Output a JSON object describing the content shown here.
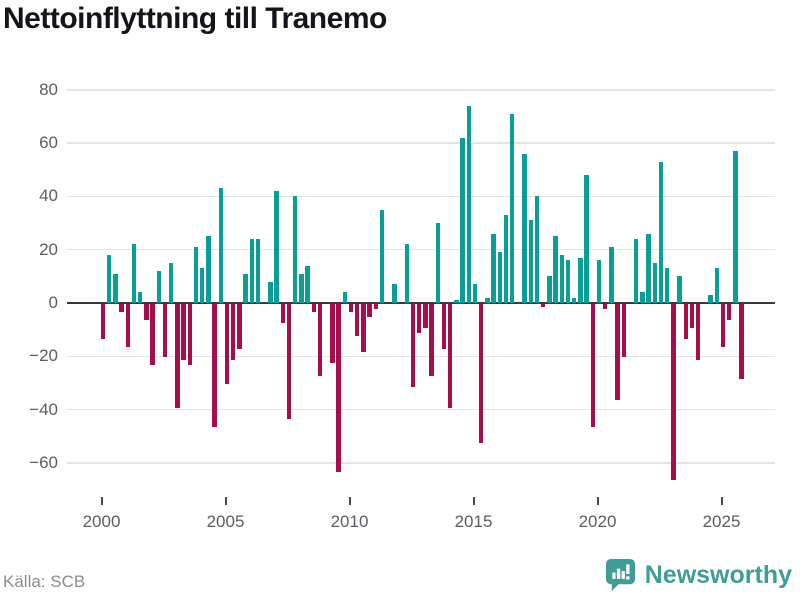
{
  "title": "Nettoinflyttning till Tranemo",
  "footer": {
    "source": "Källa: SCB",
    "brand": "Newsworthy"
  },
  "colors": {
    "positive_bar": "#0a9e96",
    "negative_bar": "#a50d4b",
    "grid": "#e4e4e6",
    "zero_line": "#3a3a3e",
    "axis_text": "#5c5c63",
    "brand_teal": "#3f9d95"
  },
  "chart_data": {
    "type": "bar",
    "title": "Nettoinflyttning till Tranemo",
    "xlabel": "",
    "ylabel": "",
    "grid": true,
    "legend": "none",
    "ylim": [
      -73,
      86
    ],
    "y_ticks": [
      {
        "label": "80",
        "value": 80
      },
      {
        "label": "60",
        "value": 60
      },
      {
        "label": "40",
        "value": 40
      },
      {
        "label": "20",
        "value": 20
      },
      {
        "label": "0",
        "value": 0
      },
      {
        "label": "−20",
        "value": -20
      },
      {
        "label": "−40",
        "value": -40
      },
      {
        "label": "−60",
        "value": -60
      }
    ],
    "x_ticks": [
      {
        "label": "2000",
        "quarter_index": 0
      },
      {
        "label": "2005",
        "quarter_index": 20
      },
      {
        "label": "2010",
        "quarter_index": 40
      },
      {
        "label": "2015",
        "quarter_index": 60
      },
      {
        "label": "2020",
        "quarter_index": 80
      },
      {
        "label": "2025",
        "quarter_index": 100
      }
    ],
    "series_name": "Nettoinflyttning per kvartal",
    "quarterly_values": [
      {
        "year": 2000,
        "quarters": [
          -13,
          18,
          11,
          -3
        ]
      },
      {
        "year": 2001,
        "quarters": [
          -16,
          22,
          4,
          -6
        ]
      },
      {
        "year": 2002,
        "quarters": [
          -23,
          12,
          -20,
          15
        ]
      },
      {
        "year": 2003,
        "quarters": [
          -39,
          -21,
          -23,
          21
        ]
      },
      {
        "year": 2004,
        "quarters": [
          13,
          25,
          -46,
          43
        ]
      },
      {
        "year": 2005,
        "quarters": [
          -30,
          -21,
          -17,
          11
        ]
      },
      {
        "year": 2006,
        "quarters": [
          24,
          24,
          0,
          8
        ]
      },
      {
        "year": 2007,
        "quarters": [
          42,
          -7,
          -43,
          40
        ]
      },
      {
        "year": 2008,
        "quarters": [
          11,
          14,
          -3,
          -27
        ]
      },
      {
        "year": 2009,
        "quarters": [
          0,
          -22,
          -63,
          4
        ]
      },
      {
        "year": 2010,
        "quarters": [
          -3,
          -12,
          -18,
          -5
        ]
      },
      {
        "year": 2011,
        "quarters": [
          -2,
          35,
          0,
          7
        ]
      },
      {
        "year": 2012,
        "quarters": [
          0,
          22,
          -31,
          -11
        ]
      },
      {
        "year": 2013,
        "quarters": [
          -9,
          -27,
          30,
          -17
        ]
      },
      {
        "year": 2014,
        "quarters": [
          -39,
          1,
          62,
          74
        ]
      },
      {
        "year": 2015,
        "quarters": [
          7,
          -52,
          2,
          26
        ]
      },
      {
        "year": 2016,
        "quarters": [
          19,
          33,
          71,
          0
        ]
      },
      {
        "year": 2017,
        "quarters": [
          56,
          31,
          40,
          -1
        ]
      },
      {
        "year": 2018,
        "quarters": [
          10,
          25,
          18,
          16
        ]
      },
      {
        "year": 2019,
        "quarters": [
          2,
          17,
          48,
          -46
        ]
      },
      {
        "year": 2020,
        "quarters": [
          16,
          -2,
          21,
          -36
        ]
      },
      {
        "year": 2021,
        "quarters": [
          -20,
          0,
          24,
          4
        ]
      },
      {
        "year": 2022,
        "quarters": [
          26,
          15,
          53,
          13
        ]
      },
      {
        "year": 2023,
        "quarters": [
          -66,
          10,
          -13,
          -9
        ]
      },
      {
        "year": 2024,
        "quarters": [
          -21,
          0,
          3,
          13
        ]
      },
      {
        "year": 2025,
        "quarters": [
          -16,
          -6,
          57,
          -28
        ]
      }
    ]
  }
}
